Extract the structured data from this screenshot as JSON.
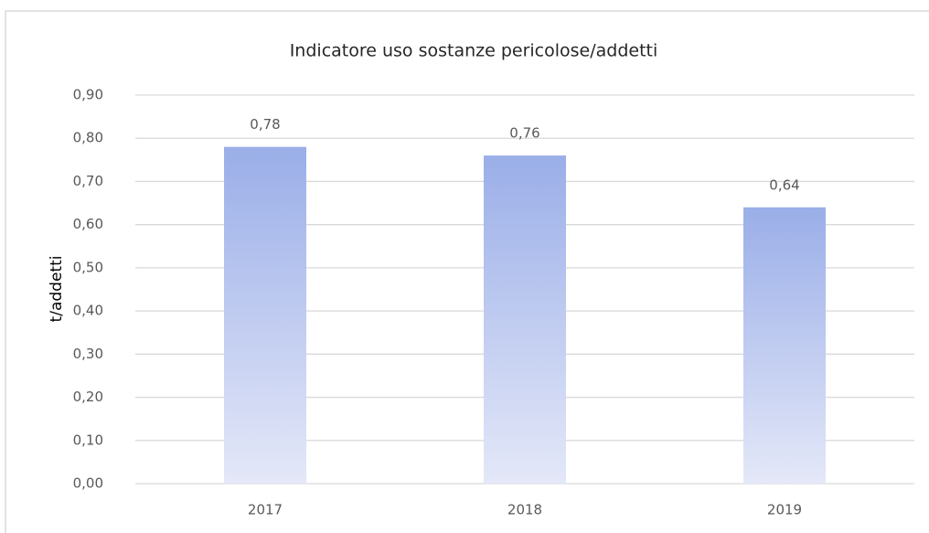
{
  "chart_data": {
    "type": "bar",
    "title": "Indicatore uso sostanze pericolose/addetti",
    "y_label": "t/addetti",
    "categories": [
      "2017",
      "2018",
      "2019"
    ],
    "values": [
      0.78,
      0.76,
      0.64
    ],
    "value_labels": [
      "0,78",
      "0,76",
      "0,64"
    ],
    "color": "#9aaee8",
    "ylim": [
      0,
      0.9
    ],
    "yticks": [
      {
        "value": 0,
        "label": "0,00"
      },
      {
        "value": 0.1,
        "label": "0,10"
      },
      {
        "value": 0.2,
        "label": "0,20"
      },
      {
        "value": 0.3,
        "label": "0,30"
      },
      {
        "value": 0.4,
        "label": "0,40"
      },
      {
        "value": 0.5,
        "label": "0,50"
      },
      {
        "value": 0.6,
        "label": "0,60"
      },
      {
        "value": 0.7,
        "label": "0,70"
      },
      {
        "value": 0.8,
        "label": "0,80"
      },
      {
        "value": 0.9,
        "label": "0,90"
      }
    ],
    "grid": true
  }
}
